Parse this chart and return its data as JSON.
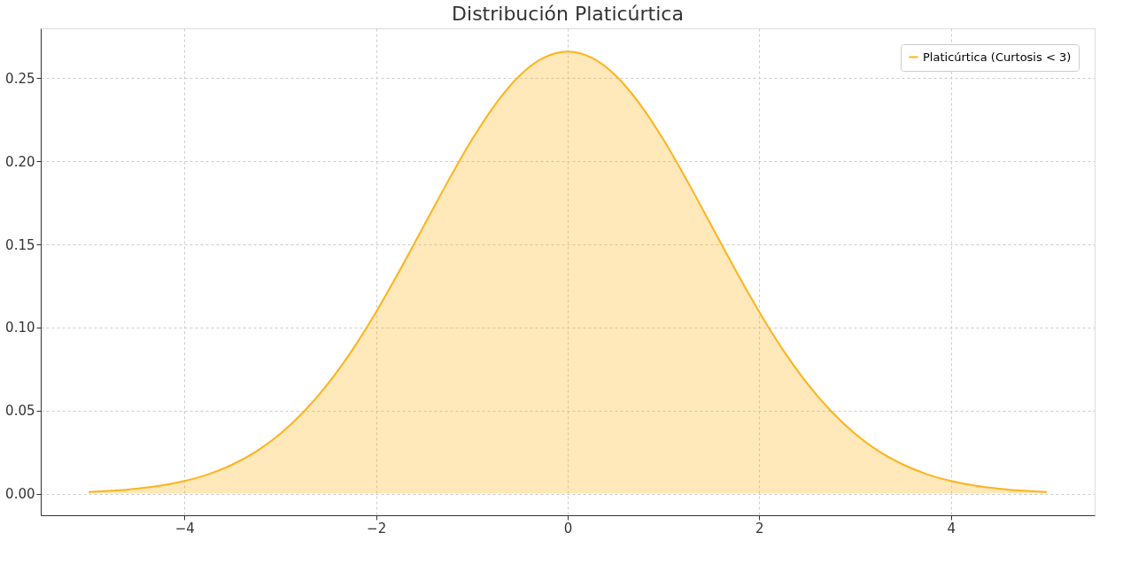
{
  "chart_data": {
    "type": "area",
    "title": "Distribución Platicúrtica",
    "x": [
      -5,
      -4.75,
      -4.5,
      -4.25,
      -4,
      -3.75,
      -3.5,
      -3.25,
      -3,
      -2.75,
      -2.5,
      -2.25,
      -2,
      -1.75,
      -1.5,
      -1.25,
      -1,
      -0.75,
      -0.5,
      -0.25,
      0,
      0.25,
      0.5,
      0.75,
      1,
      1.25,
      1.5,
      1.75,
      2,
      2.25,
      2.5,
      2.75,
      3,
      3.25,
      3.5,
      3.75,
      4,
      4.25,
      4.5,
      4.75,
      5
    ],
    "series": [
      {
        "name": "Platicúrtica (Curtosis < 3)",
        "color": "#ffb31a",
        "values": [
          0.001,
          0.0018,
          0.003,
          0.0048,
          0.0076,
          0.0117,
          0.0175,
          0.0254,
          0.036,
          0.0496,
          0.0663,
          0.0863,
          0.1093,
          0.1347,
          0.1613,
          0.1879,
          0.213,
          0.2347,
          0.2516,
          0.2623,
          0.266,
          0.2623,
          0.2516,
          0.2347,
          0.213,
          0.1879,
          0.1613,
          0.1347,
          0.1093,
          0.0863,
          0.0663,
          0.0496,
          0.036,
          0.0254,
          0.0175,
          0.0117,
          0.0076,
          0.0048,
          0.003,
          0.0018,
          0.001
        ]
      }
    ],
    "xlim": [
      -5.5,
      5.5
    ],
    "xticks": [
      -4,
      -2,
      0,
      2,
      4
    ],
    "ylim": [
      -0.013,
      0.28
    ],
    "yticks": [
      {
        "value": 0,
        "label": "0.00"
      },
      0.05,
      {
        "value": 0.1,
        "label": "0.10"
      },
      0.15,
      {
        "value": 0.2,
        "label": "0.20"
      },
      0.25
    ],
    "grid": true,
    "legend": "top right"
  }
}
